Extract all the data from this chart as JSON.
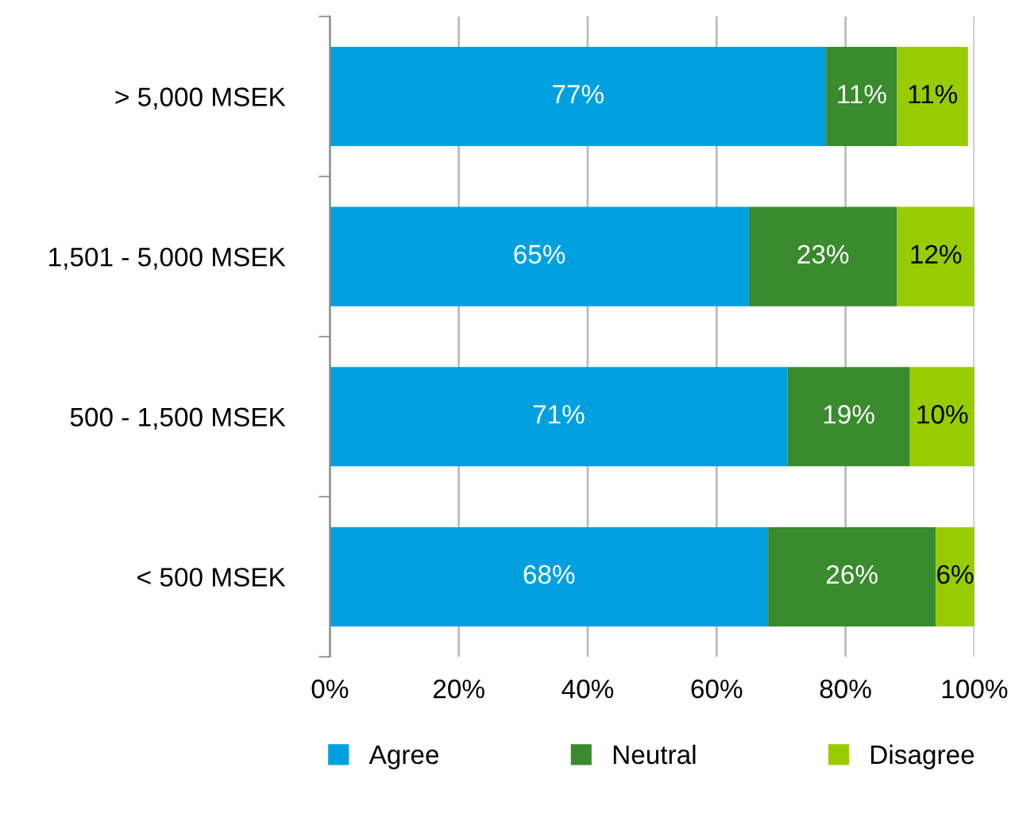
{
  "chart_data": {
    "type": "bar",
    "orientation": "horizontal",
    "stacked": true,
    "categories": [
      "> 5,000 MSEK",
      "1,501 - 5,000 MSEK",
      "500 - 1,500 MSEK",
      "< 500 MSEK"
    ],
    "series": [
      {
        "name": "Agree",
        "color": "#00a0e0",
        "values": [
          77,
          65,
          71,
          68
        ],
        "value_labels": [
          "77%",
          "65%",
          "71%",
          "68%"
        ]
      },
      {
        "name": "Neutral",
        "color": "#3a8a2e",
        "values": [
          11,
          23,
          19,
          26
        ],
        "value_labels": [
          "11%",
          "23%",
          "19%",
          "26%"
        ]
      },
      {
        "name": "Disagree",
        "color": "#99cc00",
        "values": [
          11,
          12,
          10,
          6
        ],
        "value_labels": [
          "11%",
          "12%",
          "10%",
          "6%"
        ]
      }
    ],
    "xlim": [
      0,
      100
    ],
    "xticks": [
      {
        "value": 0,
        "label": "0%"
      },
      {
        "value": 20,
        "label": "20%"
      },
      {
        "value": 40,
        "label": "40%"
      },
      {
        "value": 60,
        "label": "60%"
      },
      {
        "value": 80,
        "label": "80%"
      },
      {
        "value": 100,
        "label": "100%"
      }
    ],
    "grid": "x",
    "legend": "bottom"
  }
}
